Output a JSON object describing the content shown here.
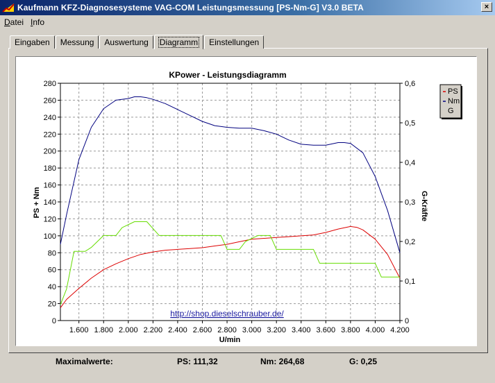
{
  "window": {
    "title": "Kaufmann KFZ-Diagnosesysteme  VAG-COM  Leistungsmessung [PS-Nm-G] V3.0 BETA",
    "close_glyph": "×"
  },
  "menu": [
    {
      "label": "Datei",
      "accel": "D",
      "rest": "atei"
    },
    {
      "label": "Info",
      "accel": "I",
      "rest": "nfo"
    }
  ],
  "tabs": [
    {
      "label": "Eingaben",
      "active": false
    },
    {
      "label": "Messung",
      "active": false
    },
    {
      "label": "Auswertung",
      "active": false
    },
    {
      "label": "Diagramm",
      "active": true
    },
    {
      "label": "Einstellungen",
      "active": false
    }
  ],
  "chart_data": {
    "type": "line",
    "title": "KPower - Leistungsdiagramm",
    "xlabel": "U/min",
    "ylabel": "PS + Nm",
    "y2label": "G-Kräfte",
    "xlim": [
      1450,
      4200
    ],
    "ylim": [
      0,
      280
    ],
    "y2lim": [
      0,
      0.6
    ],
    "x_ticks": [
      1600,
      1800,
      2000,
      2200,
      2400,
      2600,
      2800,
      3000,
      3200,
      3400,
      3600,
      3800,
      4000,
      4200
    ],
    "x_tick_labels": [
      "1.600",
      "1.800",
      "2.000",
      "2.200",
      "2.400",
      "2.600",
      "2.800",
      "3.000",
      "3.200",
      "3.400",
      "3.600",
      "3.800",
      "4.000",
      "4.200"
    ],
    "y_ticks": [
      0,
      20,
      40,
      60,
      80,
      100,
      120,
      140,
      160,
      180,
      200,
      220,
      240,
      260,
      280
    ],
    "y2_ticks": [
      0,
      0.1,
      0.2,
      0.3,
      0.4,
      0.5,
      0.6
    ],
    "y2_tick_labels": [
      "0",
      "0,1",
      "0,2",
      "0,3",
      "0,4",
      "0,5",
      "0,6"
    ],
    "grid": true,
    "legend_position": "top-right",
    "annotation": "http://shop.dieselschrauber.de/",
    "series": [
      {
        "name": "PS",
        "axis": "left",
        "color": "#dd0000",
        "x": [
          1450,
          1500,
          1600,
          1700,
          1800,
          1900,
          2000,
          2100,
          2200,
          2300,
          2400,
          2500,
          2600,
          2700,
          2800,
          2900,
          3000,
          3100,
          3200,
          3300,
          3400,
          3500,
          3600,
          3700,
          3800,
          3850,
          3900,
          4000,
          4100,
          4200
        ],
        "values": [
          15,
          25,
          38,
          50,
          60,
          67,
          73,
          78,
          81,
          83,
          84,
          85,
          86,
          88,
          90,
          93,
          96,
          97,
          98,
          99,
          100,
          101,
          104,
          108,
          111,
          110,
          107,
          96,
          78,
          50
        ]
      },
      {
        "name": "Nm",
        "axis": "left",
        "color": "#00007f",
        "x": [
          1450,
          1500,
          1600,
          1700,
          1800,
          1900,
          2000,
          2050,
          2100,
          2150,
          2200,
          2300,
          2400,
          2500,
          2600,
          2700,
          2800,
          2900,
          3000,
          3100,
          3200,
          3300,
          3400,
          3500,
          3600,
          3700,
          3750,
          3800,
          3900,
          4000,
          4100,
          4200
        ],
        "values": [
          90,
          125,
          190,
          228,
          250,
          260,
          262,
          264,
          264,
          263,
          261,
          256,
          249,
          242,
          235,
          230,
          228,
          227,
          227,
          224,
          220,
          213,
          208,
          207,
          207,
          210,
          210,
          209,
          198,
          170,
          130,
          80
        ]
      },
      {
        "name": "G",
        "axis": "right",
        "color": "#66dd00",
        "x": [
          1450,
          1500,
          1560,
          1650,
          1700,
          1800,
          1900,
          1950,
          2050,
          2150,
          2250,
          2400,
          2600,
          2750,
          2800,
          2900,
          2950,
          3050,
          3150,
          3200,
          3350,
          3400,
          3500,
          3550,
          3650,
          3750,
          3800,
          3900,
          4000,
          4050,
          4200
        ],
        "values": [
          0.04,
          0.08,
          0.175,
          0.175,
          0.185,
          0.215,
          0.215,
          0.235,
          0.25,
          0.25,
          0.215,
          0.215,
          0.215,
          0.215,
          0.18,
          0.18,
          0.2,
          0.215,
          0.215,
          0.18,
          0.18,
          0.18,
          0.18,
          0.145,
          0.145,
          0.145,
          0.145,
          0.145,
          0.145,
          0.11,
          0.11
        ]
      }
    ]
  },
  "status": {
    "max_label": "Maximalwerte:",
    "ps": "PS: 111,32",
    "nm": "Nm: 264,68",
    "g": "G: 0,25"
  }
}
